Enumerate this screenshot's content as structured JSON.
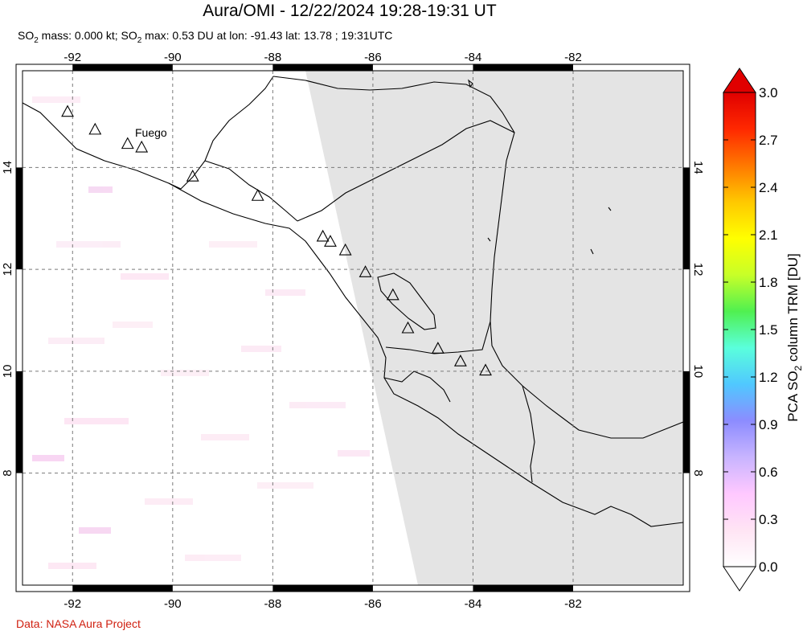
{
  "header": {
    "title": "Aura/OMI - 12/22/2024 19:28-19:31 UT",
    "subtitle_parts": {
      "p1": "SO",
      "sub1": "2",
      "p2": " mass: 0.000 kt; SO",
      "sub2": "2",
      "p3": " max: 0.53 DU at lon: -91.43 lat: 13.78 ; 19:31UTC"
    }
  },
  "map": {
    "lon_range": [
      -93,
      -79.8
    ],
    "lat_range": [
      5.8,
      15.9
    ],
    "lon_ticks": [
      {
        "value": -92,
        "label": "-92"
      },
      {
        "value": -90,
        "label": "-90"
      },
      {
        "value": -88,
        "label": "-88"
      },
      {
        "value": -86,
        "label": "-86"
      },
      {
        "value": -84,
        "label": "-84"
      },
      {
        "value": -82,
        "label": "-82"
      }
    ],
    "lat_ticks": [
      {
        "value": 8,
        "label": "8"
      },
      {
        "value": 10,
        "label": "10"
      },
      {
        "value": 12,
        "label": "12"
      },
      {
        "value": 14,
        "label": "14"
      }
    ],
    "grid": true,
    "no_data_color": "#e4e4e4",
    "volcano_label": "Fuego",
    "volcanoes": [
      {
        "lon": -92.1,
        "lat": 15.1
      },
      {
        "lon": -91.55,
        "lat": 14.75
      },
      {
        "lon": -90.9,
        "lat": 14.47
      },
      {
        "lon": -90.62,
        "lat": 14.4
      },
      {
        "lon": -89.6,
        "lat": 13.83
      },
      {
        "lon": -88.3,
        "lat": 13.45
      },
      {
        "lon": -87.0,
        "lat": 12.65
      },
      {
        "lon": -86.85,
        "lat": 12.55
      },
      {
        "lon": -86.55,
        "lat": 12.38
      },
      {
        "lon": -86.15,
        "lat": 11.95
      },
      {
        "lon": -85.6,
        "lat": 11.5
      },
      {
        "lon": -85.3,
        "lat": 10.85
      },
      {
        "lon": -84.7,
        "lat": 10.45
      },
      {
        "lon": -84.25,
        "lat": 10.2
      },
      {
        "lon": -83.75,
        "lat": 10.02
      }
    ]
  },
  "colorbar": {
    "label_main": "PCA SO",
    "label_sub": "2",
    "label_end": " column TRM [DU]",
    "ticks": [
      "0.0",
      "0.3",
      "0.6",
      "0.9",
      "1.2",
      "1.5",
      "1.8",
      "2.1",
      "2.4",
      "2.7",
      "3.0"
    ],
    "colors": [
      "#ffffff",
      "#ffe4f4",
      "#ffc8ff",
      "#c8b4ff",
      "#8c8cff",
      "#50c8ff",
      "#5affdc",
      "#50f050",
      "#c8ff28",
      "#ffff00",
      "#ffc800",
      "#ff7800",
      "#ff2800",
      "#e00000"
    ]
  },
  "credit": "Data: NASA Aura Project"
}
